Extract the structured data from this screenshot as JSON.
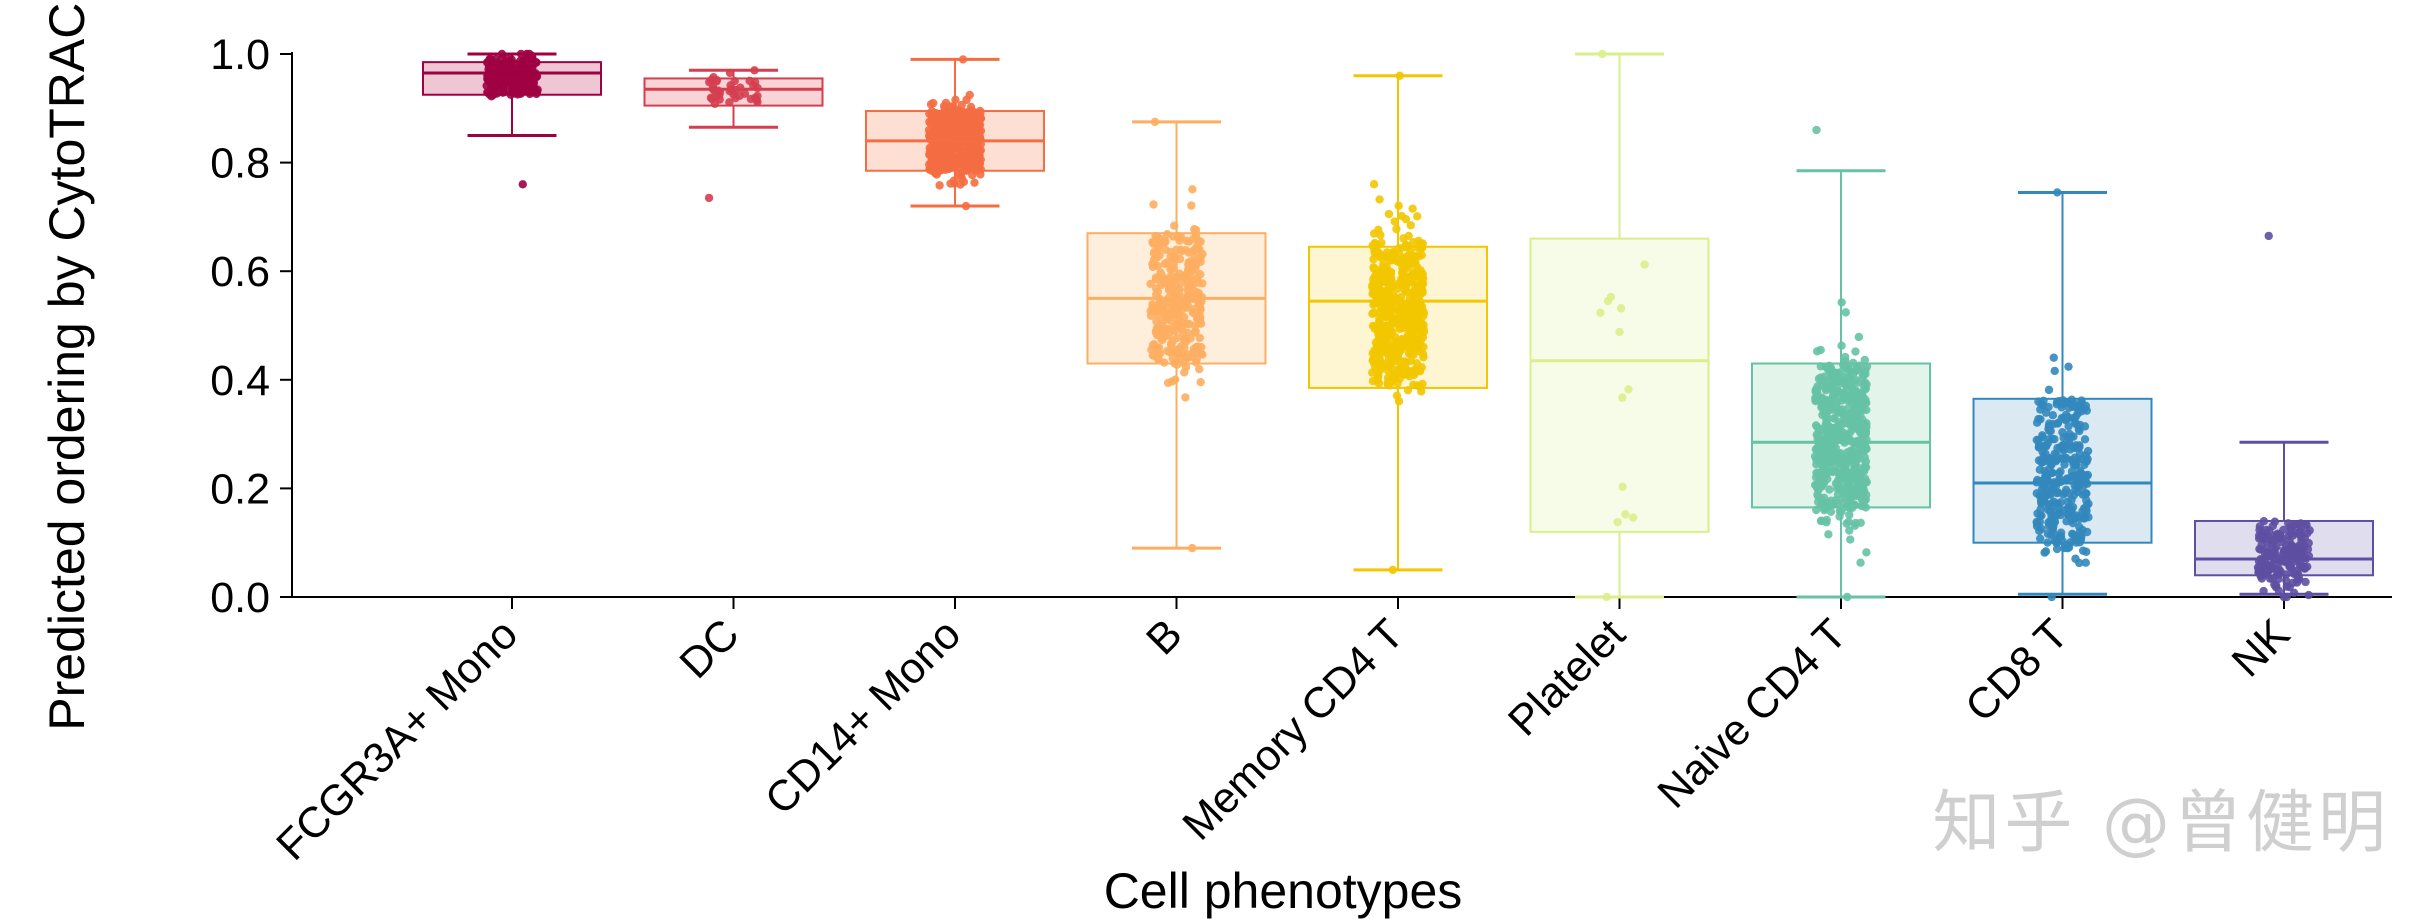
{
  "chart_data": {
    "type": "box",
    "xlabel": "Cell phenotypes",
    "ylabel": "Predicted ordering by CytoTRACE",
    "ylim": [
      0,
      1
    ],
    "yticks": [
      "0.0",
      "0.2",
      "0.4",
      "0.6",
      "0.8",
      "1.0"
    ],
    "grid": false,
    "jitter_points_overlay": true,
    "categories": [
      "FCGR3A+ Mono",
      "DC",
      "CD14+ Mono",
      "B",
      "Memory CD4 T",
      "Platelet",
      "Naive CD4 T",
      "CD8 T",
      "NK"
    ],
    "series": [
      {
        "category": "FCGR3A+ Mono",
        "color": "#9e0142",
        "fill": "#e8b3c6",
        "min": 0.85,
        "q1": 0.925,
        "median": 0.965,
        "q3": 0.985,
        "max": 1.0,
        "points_lo": 0.76,
        "points_hi": 1.0,
        "n_points": 220
      },
      {
        "category": "DC",
        "color": "#d53e4f",
        "fill": "#f5c5c9",
        "min": 0.865,
        "q1": 0.905,
        "median": 0.935,
        "q3": 0.955,
        "max": 0.97,
        "points_lo": 0.735,
        "points_hi": 0.97,
        "n_points": 40
      },
      {
        "category": "CD14+ Mono",
        "color": "#f46d43",
        "fill": "#fcd4c6",
        "min": 0.72,
        "q1": 0.785,
        "median": 0.84,
        "q3": 0.895,
        "max": 0.99,
        "points_lo": 0.72,
        "points_hi": 0.99,
        "n_points": 520
      },
      {
        "category": "B",
        "color": "#fdae61",
        "fill": "#fee9d2",
        "min": 0.09,
        "q1": 0.43,
        "median": 0.55,
        "q3": 0.67,
        "max": 0.875,
        "points_lo": 0.09,
        "points_hi": 0.875,
        "n_points": 300
      },
      {
        "category": "Memory CD4 T",
        "color": "#f2c700",
        "fill": "#fdf1c4",
        "min": 0.05,
        "q1": 0.385,
        "median": 0.545,
        "q3": 0.645,
        "max": 0.96,
        "points_lo": 0.05,
        "points_hi": 0.96,
        "n_points": 480
      },
      {
        "category": "Platelet",
        "color": "#d9ef8b",
        "fill": "#f4fbe1",
        "min": 0.0,
        "q1": 0.12,
        "median": 0.435,
        "q3": 0.66,
        "max": 1.0,
        "points_lo": 0.0,
        "points_hi": 1.0,
        "n_points": 14
      },
      {
        "category": "Naive CD4 T",
        "color": "#66c2a5",
        "fill": "#daf0e4",
        "min": 0.0,
        "q1": 0.165,
        "median": 0.285,
        "q3": 0.43,
        "max": 0.785,
        "points_lo": 0.0,
        "points_hi": 0.86,
        "n_points": 560
      },
      {
        "category": "CD8 T",
        "color": "#3288bd",
        "fill": "#cfe2ee",
        "min": 0.005,
        "q1": 0.1,
        "median": 0.21,
        "q3": 0.365,
        "max": 0.745,
        "points_lo": 0.0,
        "points_hi": 0.745,
        "n_points": 330
      },
      {
        "category": "NK",
        "color": "#5e4fa2",
        "fill": "#d6d1e8",
        "min": 0.005,
        "q1": 0.04,
        "median": 0.07,
        "q3": 0.14,
        "max": 0.285,
        "points_lo": 0.0,
        "points_hi": 0.665,
        "n_points": 190
      }
    ]
  },
  "watermark": {
    "text": "知乎 @曾健明",
    "color": "#cfcfcf"
  }
}
